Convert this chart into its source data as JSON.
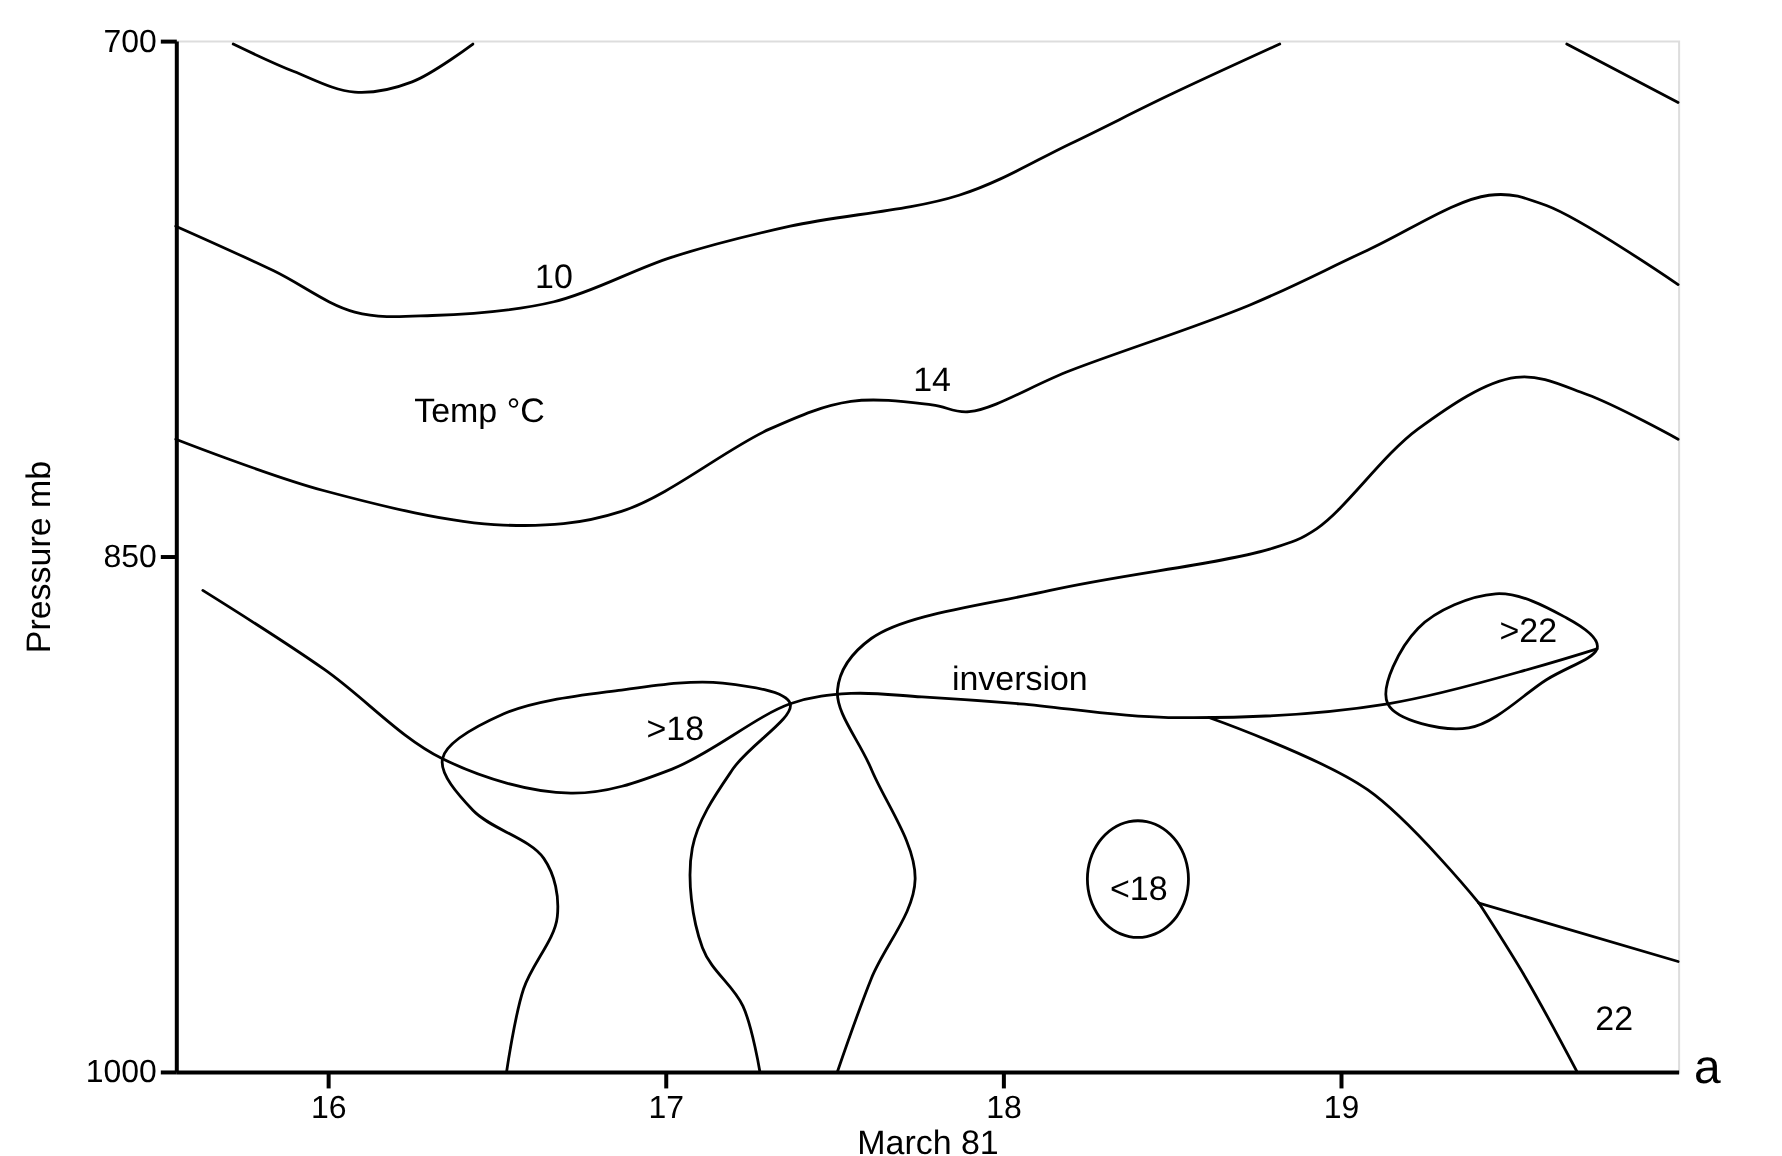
{
  "chart_data": {
    "type": "line",
    "xlabel": "March 81",
    "ylabel": "Pressure mb",
    "xlim": [
      15.55,
      20.0
    ],
    "xticks": [
      16,
      17,
      18,
      19
    ],
    "ylim": [
      1000,
      700
    ],
    "yticks": [
      700,
      850,
      1000
    ],
    "grid": false,
    "legend": false,
    "marker": "none",
    "line_style": "solid",
    "series": [
      {
        "color": "#000000",
        "x": [
          15.72,
          15.9,
          16.08,
          16.25,
          16.43
        ],
        "values": [
          701,
          709,
          715,
          712,
          701
        ]
      },
      {
        "color": "#000000",
        "x": [
          15.55,
          15.84,
          16.08,
          16.31,
          16.67,
          17.02,
          17.37,
          17.87,
          18.2,
          18.49,
          18.82
        ],
        "values": [
          754,
          767,
          779,
          780,
          776,
          763,
          754,
          745,
          730,
          716,
          701
        ]
      },
      {
        "color": "#000000",
        "x": [
          19.67,
          20.0
        ],
        "values": [
          701,
          718
        ]
      },
      {
        "color": "#000000",
        "x": [
          15.55,
          15.99,
          16.52,
          16.87,
          17.31,
          17.55,
          17.79,
          17.9,
          18.2,
          18.73,
          19.08,
          19.44,
          19.61,
          20.0
        ],
        "values": [
          816,
          831,
          841,
          837,
          813,
          805,
          806,
          808,
          796,
          777,
          761,
          745,
          748,
          771
        ]
      },
      {
        "color": "#000000",
        "x": [
          20.0,
          19.73,
          19.52,
          19.23,
          18.93,
          18.79,
          18.14,
          17.61,
          17.51,
          17.61,
          17.74,
          17.61,
          17.51
        ],
        "values": [
          816,
          803,
          798,
          813,
          842,
          848,
          860,
          874,
          889,
          912,
          944,
          973,
          1000
        ]
      },
      {
        "color": "#000000",
        "x": [
          16.53,
          16.58,
          16.68,
          16.64,
          16.43,
          16.34,
          16.52,
          16.87,
          17.17,
          17.37,
          17.2,
          17.08,
          17.11,
          17.23,
          17.28
        ],
        "values": [
          1000,
          976,
          955,
          938,
          924,
          909,
          896,
          889,
          887,
          893,
          912,
          935,
          964,
          981,
          1000
        ]
      },
      {
        "color": "#000000",
        "x": [
          15.63,
          15.99,
          16.34,
          16.72,
          17.02,
          17.37,
          17.55,
          17.76,
          18.05,
          18.49,
          19.14,
          19.76
        ],
        "values": [
          860,
          883,
          909,
          919,
          912,
          893,
          890,
          891,
          893,
          897,
          893,
          877
        ]
      },
      {
        "color": "#000000",
        "x": [
          18.61,
          19.08,
          19.41
        ],
        "values": [
          897,
          918,
          951
        ]
      },
      {
        "color": "#000000",
        "x": [
          19.41,
          20.0
        ],
        "values": [
          951,
          968
        ]
      },
      {
        "color": "#000000",
        "x": [
          19.41,
          19.55,
          19.7
        ],
        "values": [
          951,
          973,
          1000
        ]
      }
    ],
    "annotations": [
      {
        "text": "10",
        "x": 16.67,
        "y": 776
      },
      {
        "text": "14",
        "x": 17.79,
        "y": 806
      },
      {
        "text": "inversion",
        "x": 18.05,
        "y": 893
      },
      "Temp °C",
      ">18",
      ">22",
      "<18",
      "22",
      "a"
    ]
  }
}
